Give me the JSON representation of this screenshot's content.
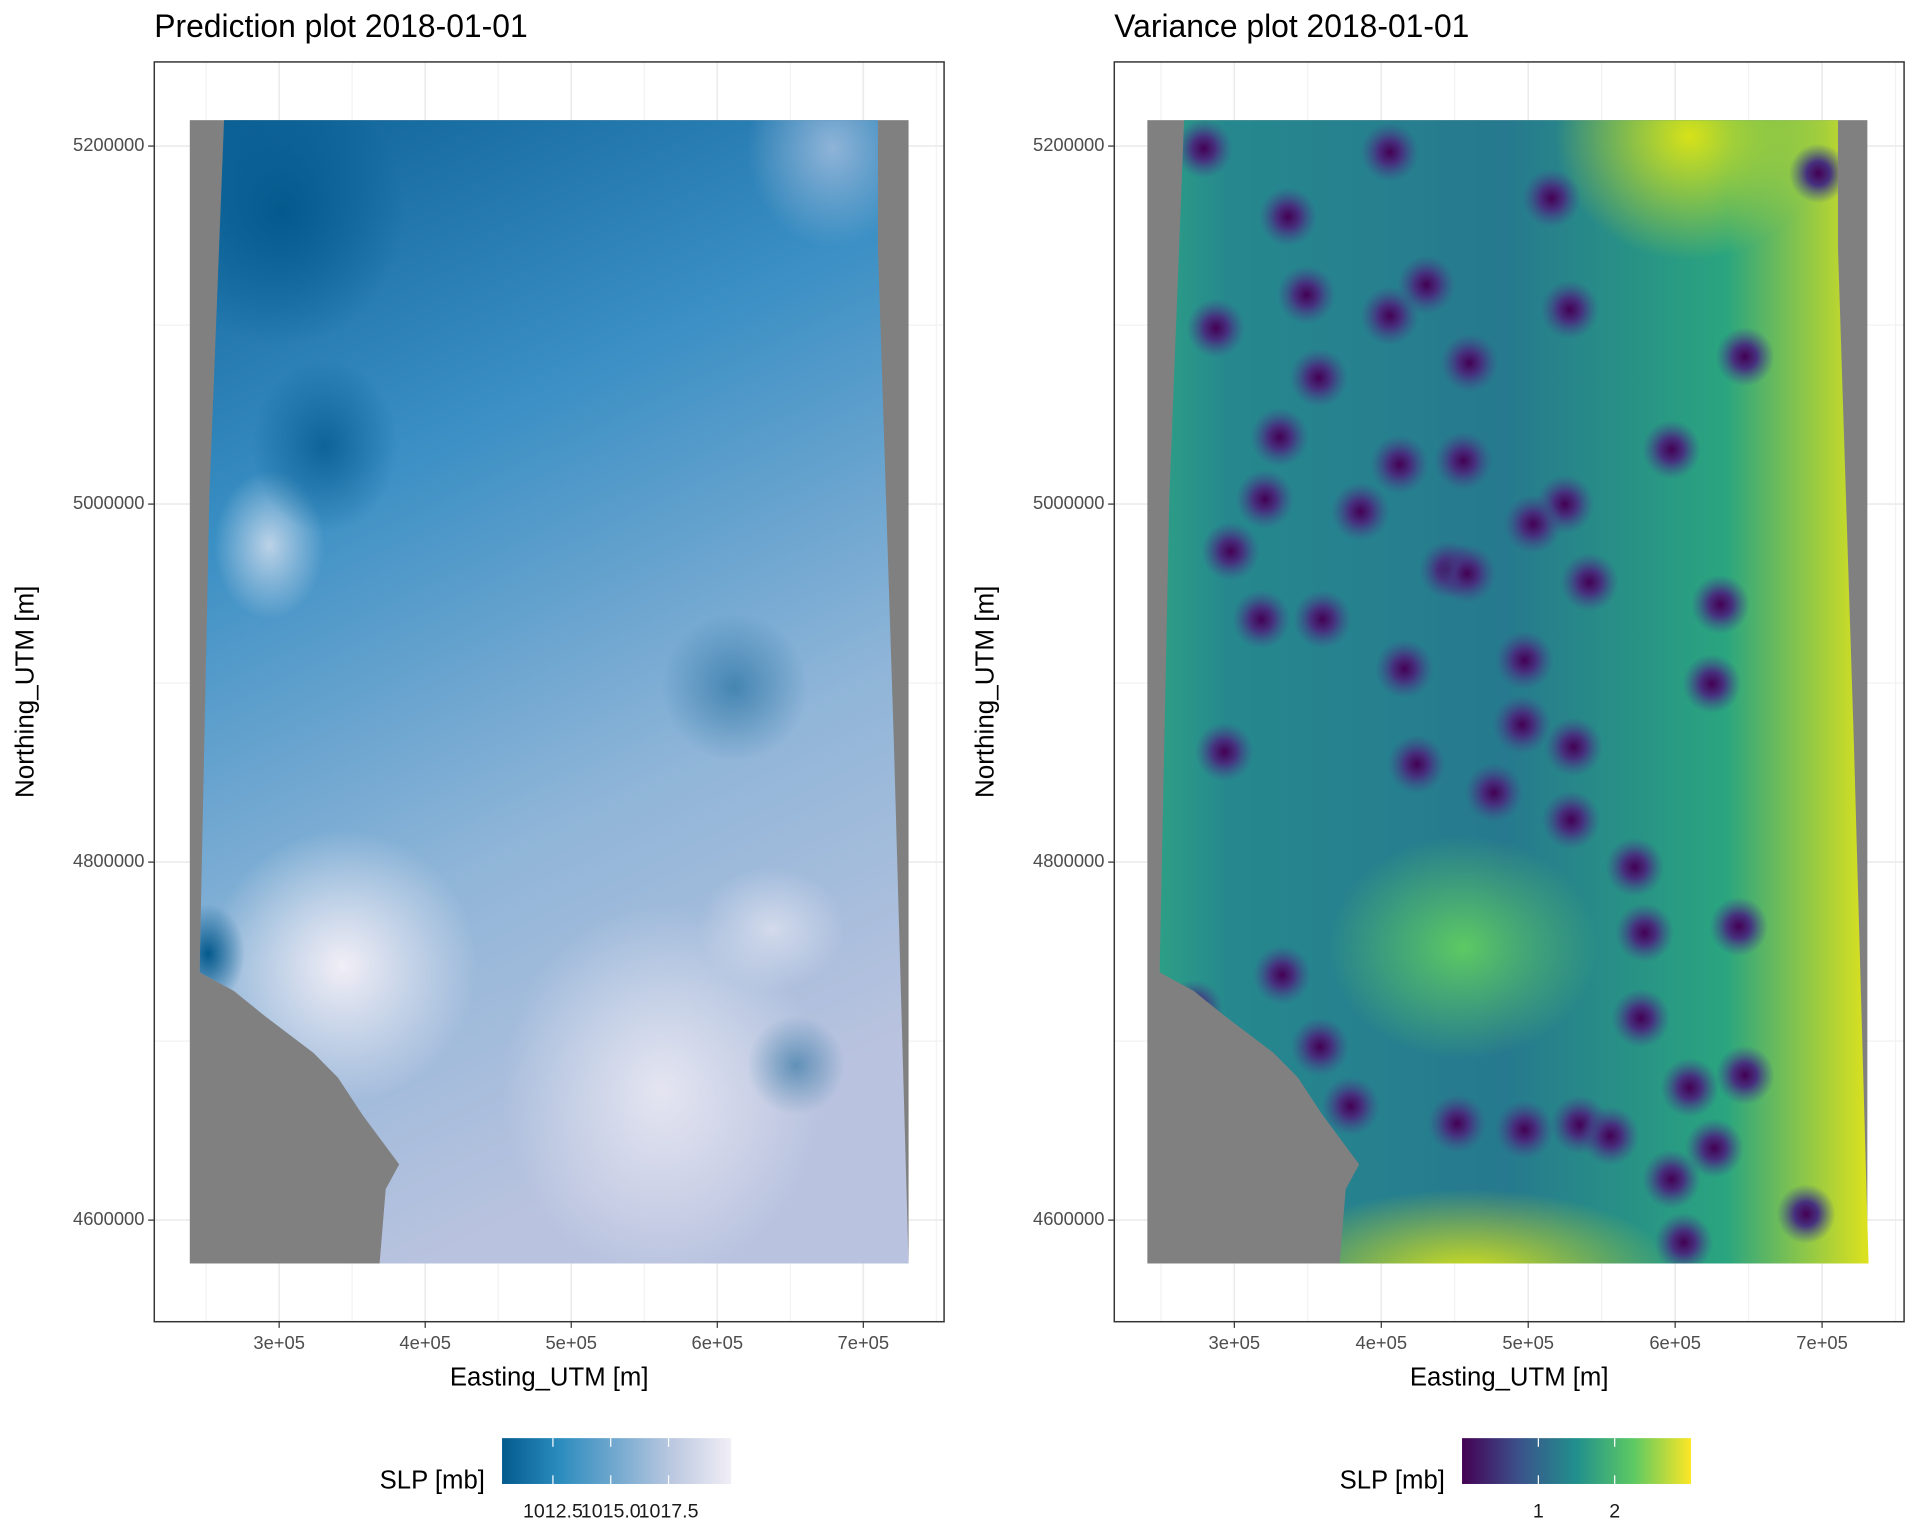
{
  "chart_data": [
    {
      "type": "heatmap",
      "title": "Prediction plot 2018-01-01",
      "xlabel": "Easting_UTM [m]",
      "ylabel": "Northing_UTM [m]",
      "xlim": [
        214500,
        755300
      ],
      "ylim": [
        4543250,
        5247000
      ],
      "xticks": [
        {
          "value": 300000,
          "label": "3e+05"
        },
        {
          "value": 400000,
          "label": "4e+05"
        },
        {
          "value": 500000,
          "label": "5e+05"
        },
        {
          "value": 600000,
          "label": "6e+05"
        },
        {
          "value": 700000,
          "label": "7e+05"
        }
      ],
      "yticks": [
        4600000,
        4800000,
        5000000,
        5200000
      ],
      "grid": true,
      "legend": {
        "title": "SLP [mb]",
        "lim": [
          1010.3,
          1020.2
        ],
        "ticks": [
          1012.5,
          {
            "value": 1015,
            "label": "1015.0"
          },
          1017.5
        ],
        "palette": [
          "#045a8d",
          "#2b8cbe",
          "#74a9cf",
          "#bdc9e1",
          "#f1eef6"
        ]
      }
    },
    {
      "type": "heatmap",
      "title": "Variance plot 2018-01-01",
      "xlabel": "Easting_UTM [m]",
      "ylabel": "Northing_UTM [m]",
      "xlim": [
        218300,
        755800
      ],
      "ylim": [
        4543250,
        5247000
      ],
      "xticks": [
        {
          "value": 300000,
          "label": "3e+05"
        },
        {
          "value": 400000,
          "label": "4e+05"
        },
        {
          "value": 500000,
          "label": "5e+05"
        },
        {
          "value": 600000,
          "label": "6e+05"
        },
        {
          "value": 700000,
          "label": "7e+05"
        }
      ],
      "yticks": [
        4600000,
        4800000,
        5000000,
        5200000
      ],
      "grid": true,
      "legend": {
        "title": "SLP [mb]",
        "lim": [
          0,
          3
        ],
        "ticks": [
          1,
          2
        ],
        "palette": [
          "#440154",
          "#3b528b",
          "#21908d",
          "#5dc963",
          "#fde725"
        ]
      }
    }
  ]
}
